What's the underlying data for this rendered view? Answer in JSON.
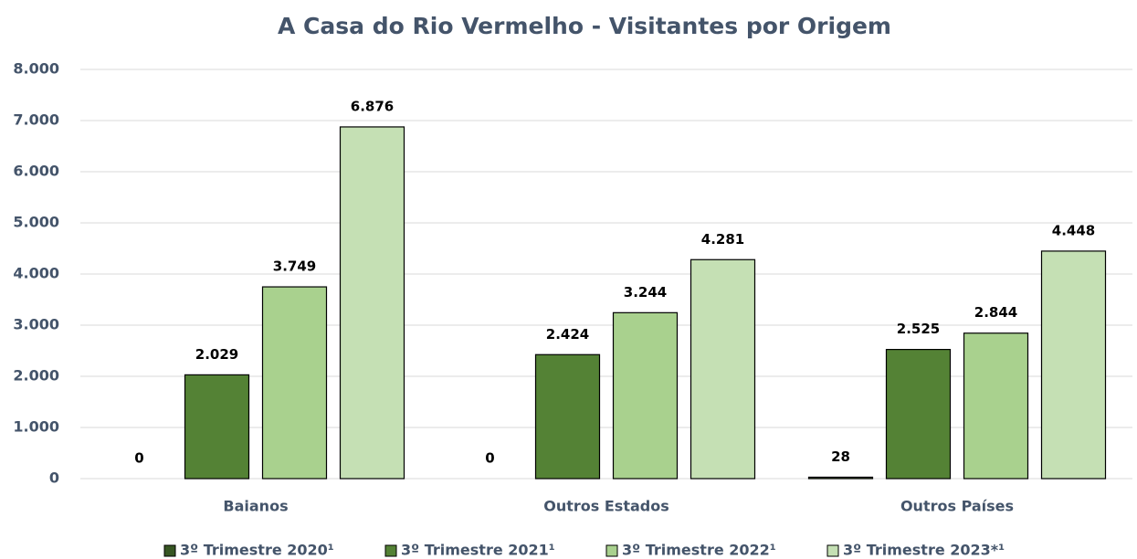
{
  "chart_data": {
    "type": "bar",
    "title": "A Casa do Rio Vermelho - Visitantes por Origem",
    "categories": [
      "Baianos",
      "Outros Estados",
      "Outros Países"
    ],
    "series": [
      {
        "name": "3º Trimestre 2020¹",
        "color": "#375623",
        "values": [
          0,
          0,
          28
        ],
        "value_labels": [
          "0",
          "0",
          "28"
        ]
      },
      {
        "name": "3º Trimestre 2021¹",
        "color": "#548235",
        "values": [
          2029,
          2424,
          2525
        ],
        "value_labels": [
          "2.029",
          "2.424",
          "2.525"
        ]
      },
      {
        "name": "3º Trimestre 2022¹",
        "color": "#a9d18e",
        "values": [
          3749,
          3244,
          2844
        ],
        "value_labels": [
          "3.749",
          "3.244",
          "2.844"
        ]
      },
      {
        "name": "3º Trimestre 2023*¹",
        "color": "#c5e0b4",
        "values": [
          6876,
          4281,
          4448
        ],
        "value_labels": [
          "6.876",
          "4.281",
          "4.448"
        ]
      }
    ],
    "ylim": [
      0,
      8000
    ],
    "yticks": [
      0,
      {
        "value": 1000,
        "label": "1.000"
      },
      {
        "value": 2000,
        "label": "2.000"
      },
      {
        "value": 3000,
        "label": "3.000"
      },
      {
        "value": 4000,
        "label": "4.000"
      },
      {
        "value": 5000,
        "label": "5.000"
      },
      {
        "value": 6000,
        "label": "6.000"
      },
      {
        "value": 7000,
        "label": "7.000"
      },
      {
        "value": 8000,
        "label": "8.000"
      }
    ],
    "grid": true,
    "legend": "bottom"
  }
}
